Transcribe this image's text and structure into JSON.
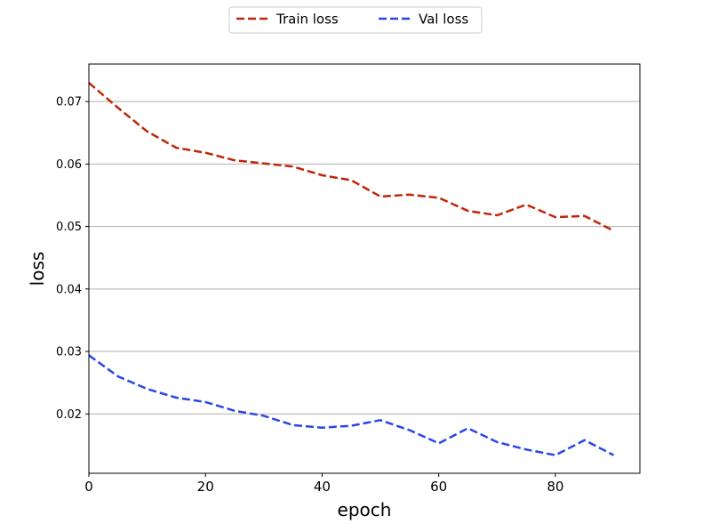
{
  "chart_data": {
    "type": "line",
    "xlabel": "epoch",
    "ylabel": "loss",
    "xlim": [
      0,
      94.5
    ],
    "ylim": [
      0.0105,
      0.076
    ],
    "xticks": [
      0,
      20,
      40,
      60,
      80
    ],
    "yticks": [
      0.02,
      0.03,
      0.04,
      0.05,
      0.06,
      0.07
    ],
    "ytick_labels": [
      "0.02",
      "0.03",
      "0.04",
      "0.05",
      "0.06",
      "0.07"
    ],
    "grid": "horizontal",
    "legend_position": "top-center",
    "series": [
      {
        "name": "Train loss",
        "color": "#c0250a",
        "line_style": "dashed",
        "x": [
          0,
          5,
          10,
          15,
          20,
          25,
          30,
          35,
          40,
          45,
          50,
          55,
          60,
          65,
          70,
          75,
          80,
          85,
          90
        ],
        "y": [
          0.073,
          0.069,
          0.0652,
          0.0626,
          0.0618,
          0.0606,
          0.0601,
          0.0596,
          0.0582,
          0.0574,
          0.0548,
          0.0551,
          0.0546,
          0.0525,
          0.0518,
          0.0535,
          0.0515,
          0.0517,
          0.0493
        ]
      },
      {
        "name": "Val loss",
        "color": "#2a46e8",
        "line_style": "dashed",
        "x": [
          0,
          5,
          10,
          15,
          20,
          25,
          30,
          35,
          40,
          45,
          50,
          55,
          60,
          65,
          70,
          75,
          80,
          85,
          90
        ],
        "y": [
          0.0294,
          0.026,
          0.024,
          0.0226,
          0.0219,
          0.0205,
          0.0197,
          0.0182,
          0.0178,
          0.0181,
          0.019,
          0.0174,
          0.0153,
          0.0177,
          0.0155,
          0.0143,
          0.0134,
          0.0158,
          0.0134
        ]
      }
    ]
  }
}
